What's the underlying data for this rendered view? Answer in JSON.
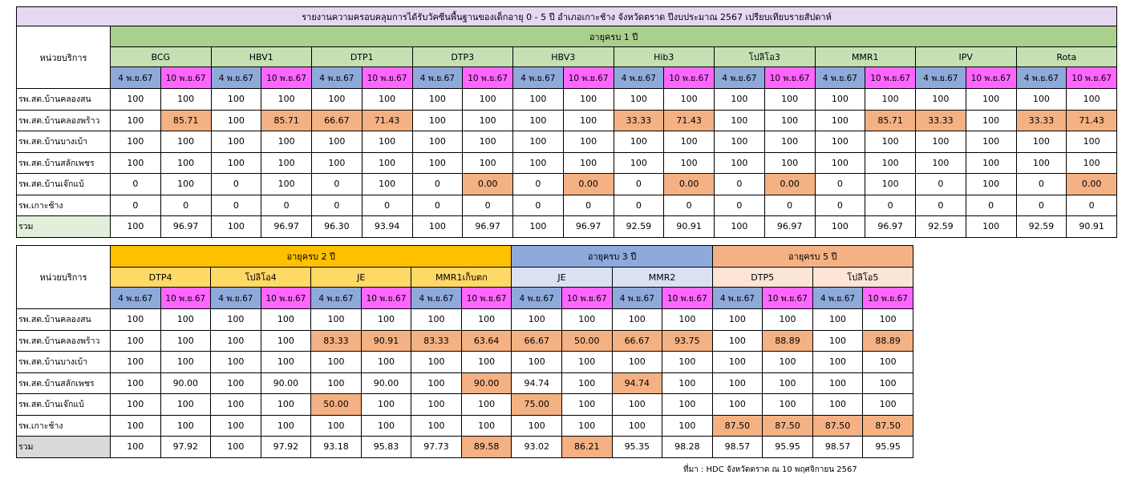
{
  "title": "รายงานความครอบคลุมการได้รับวัคซีนพื้นฐานของเด็กอายุ 0 - 5 ปี อำเภอเกาะช้าง จังหวัดตราด  ปีงบประมาณ 2567 เปรียบเทียบรายสัปดาห์",
  "unit_header": "หน่วยบริการ",
  "date_labels": [
    "4 พ.ย.67",
    "10 พ.ย.67"
  ],
  "colors": {
    "title_bg": "#e6d7f2",
    "age1_bg": "#a9d08e",
    "age2_bg": "#ffc000",
    "age3_bg": "#8ea9db",
    "age5_bg": "#f4b183",
    "date1_bg": "#8eaadb",
    "date2_bg": "#ff66ff",
    "highlight_bg": "#f4b183"
  },
  "table1": {
    "age_group": "อายุครบ 1 ปี",
    "vaccines": [
      "BCG",
      "HBV1",
      "DTP1",
      "DTP3",
      "HBV3",
      "Hib3",
      "โปลิโอ3",
      "MMR1",
      "IPV",
      "Rota"
    ],
    "rows": [
      {
        "unit": "รพ.สต.บ้านคลองสน",
        "values": [
          "100",
          "100",
          "100",
          "100",
          "100",
          "100",
          "100",
          "100",
          "100",
          "100",
          "100",
          "100",
          "100",
          "100",
          "100",
          "100",
          "100",
          "100",
          "100",
          "100"
        ]
      },
      {
        "unit": "รพ.สต.บ้านคลองพร้าว",
        "values": [
          "100",
          "85.71",
          "100",
          "85.71",
          "66.67",
          "71.43",
          "100",
          "100",
          "100",
          "100",
          "33.33",
          "71.43",
          "100",
          "100",
          "100",
          "85.71",
          "33.33",
          "100",
          "33.33",
          "71.43"
        ]
      },
      {
        "unit": "รพ.สต.บ้านบางเบ้า",
        "values": [
          "100",
          "100",
          "100",
          "100",
          "100",
          "100",
          "100",
          "100",
          "100",
          "100",
          "100",
          "100",
          "100",
          "100",
          "100",
          "100",
          "100",
          "100",
          "100",
          "100"
        ]
      },
      {
        "unit": "รพ.สต.บ้านสลักเพชร",
        "values": [
          "100",
          "100",
          "100",
          "100",
          "100",
          "100",
          "100",
          "100",
          "100",
          "100",
          "100",
          "100",
          "100",
          "100",
          "100",
          "100",
          "100",
          "100",
          "100",
          "100"
        ]
      },
      {
        "unit": "รพ.สต.บ้านเจ๊กแบ้",
        "values": [
          "0",
          "100",
          "0",
          "100",
          "0",
          "100",
          "0",
          "0.00",
          "0",
          "0.00",
          "0",
          "0.00",
          "0",
          "0.00",
          "0",
          "100",
          "0",
          "100",
          "0",
          "0.00"
        ]
      },
      {
        "unit": "รพ.เกาะช้าง",
        "values": [
          "0",
          "0",
          "0",
          "0",
          "0",
          "0",
          "0",
          "0",
          "0",
          "0",
          "0",
          "0",
          "0",
          "0",
          "0",
          "0",
          "0",
          "0",
          "0",
          "0"
        ]
      },
      {
        "unit": "รวม",
        "values": [
          "100",
          "96.97",
          "100",
          "96.97",
          "96.30",
          "93.94",
          "100",
          "96.97",
          "100",
          "96.97",
          "92.59",
          "90.91",
          "100",
          "96.97",
          "100",
          "96.97",
          "92.59",
          "100",
          "92.59",
          "90.91"
        ]
      }
    ]
  },
  "table2": {
    "age_groups": [
      "อายุครบ 2 ปี",
      "อายุครบ 3 ปี",
      "อายุครบ 5 ปี"
    ],
    "vaccines": [
      "DTP4",
      "โปลิโอ4",
      "JE",
      "MMR1เก็บตก",
      "JE",
      "MMR2",
      "DTP5",
      "โปลิโอ5"
    ],
    "rows": [
      {
        "unit": "รพ.สต.บ้านคลองสน",
        "values": [
          "100",
          "100",
          "100",
          "100",
          "100",
          "100",
          "100",
          "100",
          "100",
          "100",
          "100",
          "100",
          "100",
          "100",
          "100",
          "100"
        ]
      },
      {
        "unit": "รพ.สต.บ้านคลองพร้าว",
        "values": [
          "100",
          "100",
          "100",
          "100",
          "83.33",
          "90.91",
          "83.33",
          "63.64",
          "66.67",
          "50.00",
          "66.67",
          "93.75",
          "100",
          "88.89",
          "100",
          "88.89"
        ]
      },
      {
        "unit": "รพ.สต.บ้านบางเบ้า",
        "values": [
          "100",
          "100",
          "100",
          "100",
          "100",
          "100",
          "100",
          "100",
          "100",
          "100",
          "100",
          "100",
          "100",
          "100",
          "100",
          "100"
        ]
      },
      {
        "unit": "รพ.สต.บ้านสลักเพชร",
        "values": [
          "100",
          "90.00",
          "100",
          "90.00",
          "100",
          "90.00",
          "100",
          "90.00",
          "94.74",
          "100",
          "94.74",
          "100",
          "100",
          "100",
          "100",
          "100"
        ]
      },
      {
        "unit": "รพ.สต.บ้านเจ๊กแบ้",
        "values": [
          "100",
          "100",
          "100",
          "100",
          "50.00",
          "100",
          "100",
          "100",
          "75.00",
          "100",
          "100",
          "100",
          "100",
          "100",
          "100",
          "100"
        ]
      },
      {
        "unit": "รพ.เกาะช้าง",
        "values": [
          "100",
          "100",
          "100",
          "100",
          "100",
          "100",
          "100",
          "100",
          "100",
          "100",
          "100",
          "100",
          "87.50",
          "87.50",
          "87.50",
          "87.50"
        ]
      },
      {
        "unit": "รวม",
        "values": [
          "100",
          "97.92",
          "100",
          "97.92",
          "93.18",
          "95.83",
          "97.73",
          "89.58",
          "93.02",
          "86.21",
          "95.35",
          "98.28",
          "98.57",
          "95.95",
          "98.57",
          "95.95"
        ]
      }
    ]
  },
  "source": "ที่มา : HDC จังหวัดตราด ณ 10 พฤศจิกายน 2567"
}
